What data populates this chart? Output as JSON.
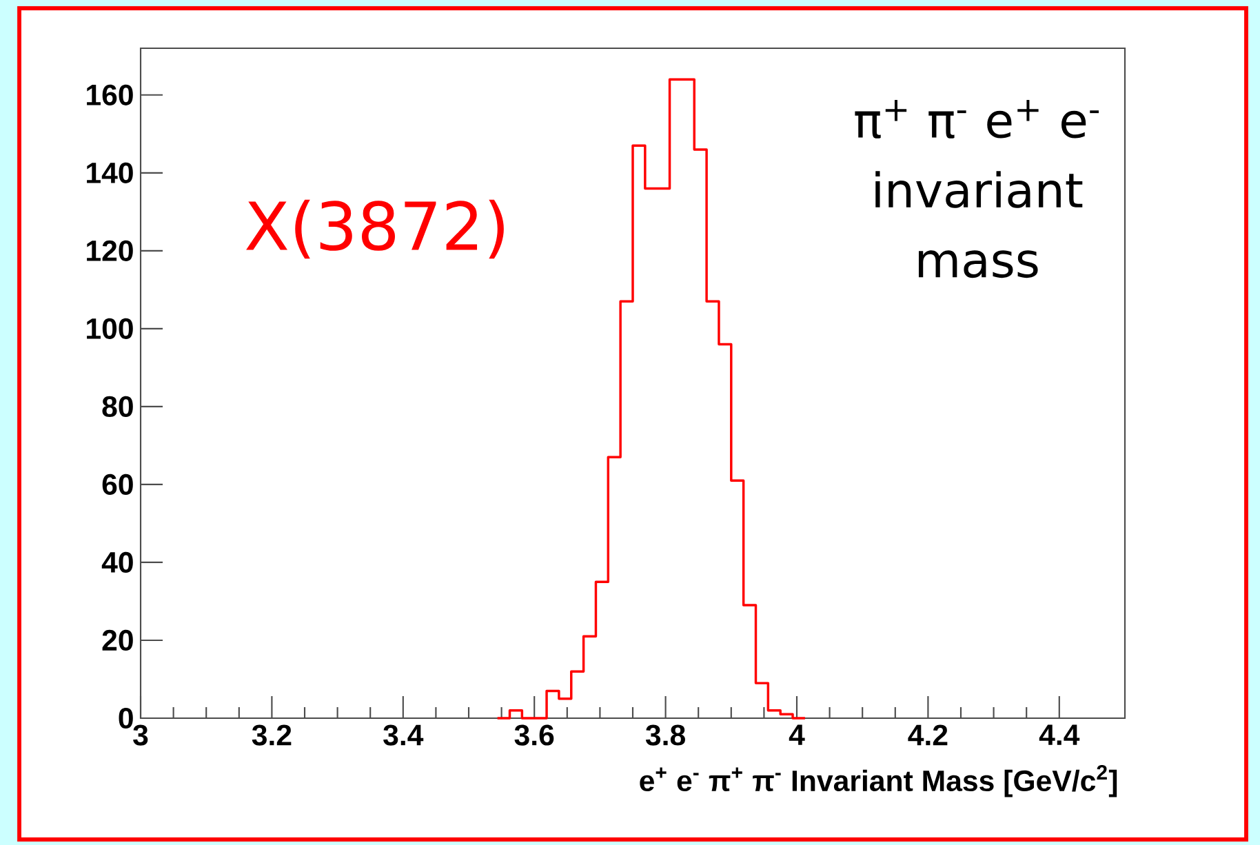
{
  "chart_data": {
    "type": "histogram",
    "xlabel": "e$^{+}$ e$^{-}$ π$^{+}$ π$^{-}$ Invariant Mass [GeV/c$^{2}$]",
    "annotations": [
      "X(3872)",
      "π$^{+}$ π$^{-}$ e$^{+}$ e$^{-}$ invariant mass"
    ],
    "bins": [
      3.54375,
      3.5625,
      3.58125,
      3.6,
      3.61875,
      3.6375,
      3.65625,
      3.675,
      3.69375,
      3.7125,
      3.73125,
      3.75,
      3.76875,
      3.7875,
      3.80625,
      3.825,
      3.84375,
      3.8625,
      3.88125,
      3.9,
      3.91875,
      3.9375,
      3.95625,
      3.975,
      3.99375,
      4.0125
    ],
    "values": [
      0,
      2,
      0,
      0,
      7,
      5,
      12,
      21,
      35,
      67,
      107,
      147,
      136,
      136,
      164,
      164,
      146,
      107,
      96,
      61,
      29,
      9,
      2,
      1,
      0
    ],
    "color": "#ff0000",
    "xlim": [
      3,
      4.5
    ],
    "ylim": [
      0,
      172
    ],
    "xticks": [
      3,
      3.2,
      3.4,
      3.6,
      3.8,
      4,
      4.2,
      4.4
    ],
    "yticks": [
      0,
      20,
      40,
      60,
      80,
      100,
      120,
      140,
      160
    ]
  }
}
